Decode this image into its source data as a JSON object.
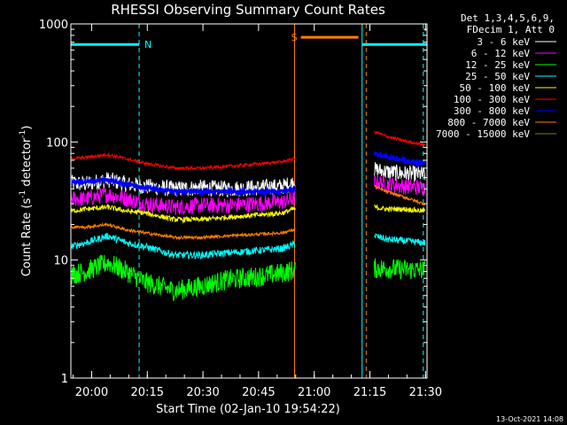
{
  "chart_data": {
    "type": "line",
    "title": "RHESSI Observing Summary Count Rates",
    "xlabel": "Start Time (02-Jan-10 19:54:22)",
    "ylabel": "Count Rate (s⁻¹ detector⁻¹)",
    "ylabel_text": "Count Rate (s",
    "ylabel_sup1": "-1",
    "ylabel_mid": " detector",
    "ylabel_sup2": "-1",
    "ylabel_end": ")",
    "yscale": "log",
    "ylim": [
      1,
      1000
    ],
    "xlim_minutes": [
      0,
      96
    ],
    "x_ticks": [
      {
        "label": "20:00",
        "minute": 5.6
      },
      {
        "label": "20:15",
        "minute": 20.6
      },
      {
        "label": "20:30",
        "minute": 35.6
      },
      {
        "label": "20:45",
        "minute": 50.6
      },
      {
        "label": "21:00",
        "minute": 65.6
      },
      {
        "label": "21:15",
        "minute": 80.6
      },
      {
        "label": "21:30",
        "minute": 95.6
      }
    ],
    "y_ticks": [
      {
        "label": "1",
        "value": 1
      },
      {
        "label": "10",
        "value": 10
      },
      {
        "label": "100",
        "value": 100
      },
      {
        "label": "1000",
        "value": 1000
      }
    ],
    "legend_header": [
      "Det 1,3,4,5,6,9,",
      "FDecim 1, Att 0"
    ],
    "series": [
      {
        "name": "3 - 6 keV",
        "color": "#ffffff",
        "points": [
          [
            0,
            45
          ],
          [
            4,
            44
          ],
          [
            10,
            48
          ],
          [
            15,
            44
          ],
          [
            20,
            42
          ],
          [
            28,
            40
          ],
          [
            35,
            41
          ],
          [
            42,
            40
          ],
          [
            50,
            41
          ],
          [
            57,
            42
          ],
          [
            60,
            45
          ],
          [
            81.8,
            58
          ],
          [
            85,
            56
          ],
          [
            90,
            54
          ],
          [
            95,
            53
          ]
        ],
        "noise": 0.16
      },
      {
        "name": "6 - 12 keV",
        "color": "#ff00ff",
        "points": [
          [
            0,
            33
          ],
          [
            4,
            33
          ],
          [
            10,
            36
          ],
          [
            15,
            33
          ],
          [
            20,
            30
          ],
          [
            28,
            28
          ],
          [
            35,
            29
          ],
          [
            42,
            29
          ],
          [
            50,
            30
          ],
          [
            57,
            31
          ],
          [
            60,
            33
          ],
          [
            81.8,
            46
          ],
          [
            85,
            44
          ],
          [
            90,
            42
          ],
          [
            95,
            41
          ]
        ],
        "noise": 0.16
      },
      {
        "name": "12 - 25 keV",
        "color": "#00ff00",
        "points": [
          [
            0,
            7.5
          ],
          [
            4,
            8
          ],
          [
            10,
            9.5
          ],
          [
            15,
            8
          ],
          [
            20,
            6.5
          ],
          [
            28,
            5.5
          ],
          [
            35,
            6
          ],
          [
            42,
            6.8
          ],
          [
            50,
            7.2
          ],
          [
            57,
            7.8
          ],
          [
            60,
            8.2
          ],
          [
            81.8,
            8.5
          ],
          [
            85,
            8.5
          ],
          [
            90,
            8.3
          ],
          [
            95,
            8.2
          ]
        ],
        "noise": 0.2
      },
      {
        "name": "25 - 50 keV",
        "color": "#00ffff",
        "points": [
          [
            0,
            13
          ],
          [
            4,
            14
          ],
          [
            10,
            16
          ],
          [
            15,
            14
          ],
          [
            20,
            13
          ],
          [
            28,
            11
          ],
          [
            35,
            11
          ],
          [
            42,
            11.5
          ],
          [
            50,
            12
          ],
          [
            57,
            12.5
          ],
          [
            60,
            13.5
          ],
          [
            81.8,
            16
          ],
          [
            85,
            15
          ],
          [
            90,
            14.5
          ],
          [
            95,
            14
          ]
        ],
        "noise": 0.07
      },
      {
        "name": "50 - 100 keV",
        "color": "#ffff00",
        "points": [
          [
            0,
            26
          ],
          [
            4,
            27
          ],
          [
            10,
            28
          ],
          [
            15,
            26
          ],
          [
            20,
            25
          ],
          [
            28,
            22
          ],
          [
            35,
            22
          ],
          [
            42,
            23
          ],
          [
            50,
            24
          ],
          [
            57,
            25
          ],
          [
            60,
            27
          ],
          [
            81.8,
            28
          ],
          [
            85,
            27
          ],
          [
            90,
            27
          ],
          [
            95,
            26
          ]
        ],
        "noise": 0.05
      },
      {
        "name": "100 - 300 keV",
        "color": "#ff0000",
        "points": [
          [
            0,
            72
          ],
          [
            4,
            74
          ],
          [
            10,
            78
          ],
          [
            15,
            72
          ],
          [
            20,
            66
          ],
          [
            28,
            60
          ],
          [
            35,
            60
          ],
          [
            42,
            62
          ],
          [
            50,
            65
          ],
          [
            57,
            68
          ],
          [
            60,
            72
          ],
          [
            81.8,
            122
          ],
          [
            85,
            112
          ],
          [
            90,
            102
          ],
          [
            95,
            95
          ]
        ],
        "noise": 0.03
      },
      {
        "name": "300 - 800 keV",
        "color": "#0000ff",
        "points": [
          [
            0,
            46
          ],
          [
            4,
            46
          ],
          [
            10,
            48
          ],
          [
            15,
            44
          ],
          [
            20,
            41
          ],
          [
            28,
            38
          ],
          [
            35,
            38
          ],
          [
            42,
            38
          ],
          [
            50,
            38
          ],
          [
            57,
            38
          ],
          [
            60,
            40
          ],
          [
            81.8,
            80
          ],
          [
            85,
            75
          ],
          [
            90,
            70
          ],
          [
            95,
            66
          ]
        ],
        "noise": 0.03
      },
      {
        "name": "800 - 7000 keV",
        "color": "#ff8000",
        "points": [
          [
            0,
            19
          ],
          [
            4,
            19
          ],
          [
            10,
            20
          ],
          [
            15,
            18
          ],
          [
            20,
            17
          ],
          [
            28,
            15.5
          ],
          [
            35,
            15.5
          ],
          [
            42,
            16
          ],
          [
            50,
            16.5
          ],
          [
            57,
            17
          ],
          [
            60,
            18
          ],
          [
            81.8,
            42
          ],
          [
            85,
            38
          ],
          [
            90,
            34
          ],
          [
            95,
            30
          ]
        ],
        "noise": 0.03
      },
      {
        "name": "7000 - 15000 keV",
        "color": "#808000",
        "points": [],
        "noise": 0
      }
    ],
    "gaps": [
      [
        60.5,
        81.8
      ]
    ],
    "attenuator_segments": [
      {
        "label": "N",
        "color": "#00ffff",
        "y": 670,
        "from": 0,
        "to": 18.4
      },
      {
        "label": "S",
        "color": "#ff8000",
        "y": 770,
        "from": 62,
        "to": 77.5
      },
      {
        "label": "",
        "color": "#00ffff",
        "y": 670,
        "from": 78.5,
        "to": 96
      }
    ],
    "markers": [
      {
        "minute": 18.4,
        "color": "#00ffff",
        "style": "dashed"
      },
      {
        "minute": 60.3,
        "color": "#ff8000",
        "style": "solid"
      },
      {
        "minute": 78.5,
        "color": "#00ffff",
        "style": "solid"
      },
      {
        "minute": 79.6,
        "color": "#ff8000",
        "style": "dashed"
      },
      {
        "minute": 95.0,
        "color": "#00ffff",
        "style": "dashed"
      }
    ],
    "timestamp": "13-Oct-2021 14:08"
  }
}
